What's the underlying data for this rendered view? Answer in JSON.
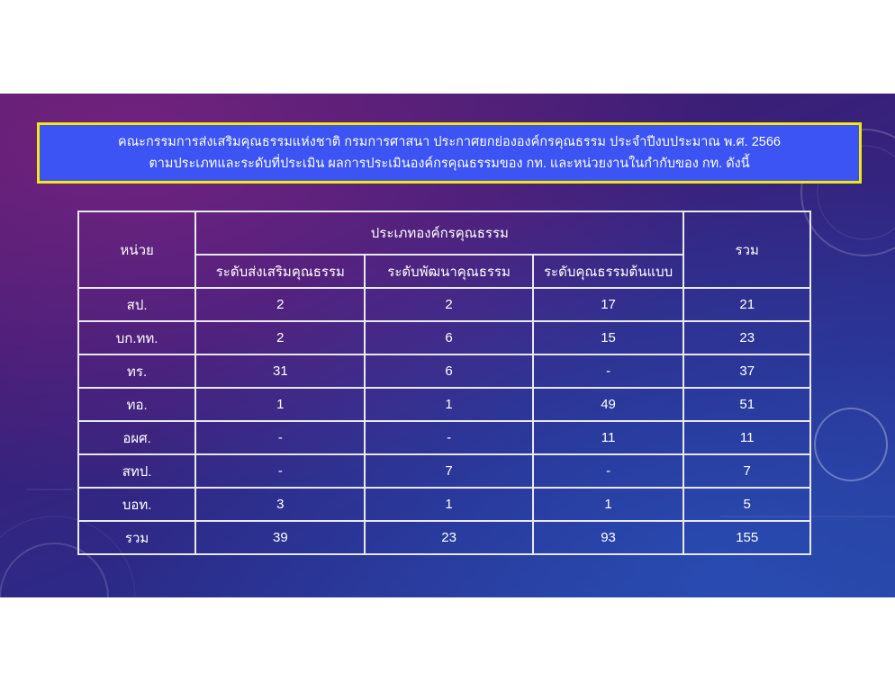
{
  "title": {
    "line1": "คณะกรรมการส่งเสริมคุณธรรมแห่งชาติ กรมการศาสนา ประกาศยกย่ององค์กรคุณธรรม ประจำปีงบประมาณ พ.ศ. 2566",
    "line2": "ตามประเภทและระดับที่ประเมิน ผลการประเมินองค์กรคุณธรรมของ กท. และหน่วยงานในกำกับของ กท. ดังนี้"
  },
  "table": {
    "header_unit": "หน่วย",
    "header_group": "ประเภทองค์กรคุณธรรม",
    "header_total": "รวม",
    "subheaders": [
      "ระดับส่งเสริมคุณธรรม",
      "ระดับพัฒนาคุณธรรม",
      "ระดับคุณธรรมต้นแบบ"
    ],
    "rows": [
      {
        "unit": "สป.",
        "a": "2",
        "b": "2",
        "c": "17",
        "total": "21"
      },
      {
        "unit": "บก.ทท.",
        "a": "2",
        "b": "6",
        "c": "15",
        "total": "23"
      },
      {
        "unit": "ทร.",
        "a": "31",
        "b": "6",
        "c": "-",
        "total": "37"
      },
      {
        "unit": "ทอ.",
        "a": "1",
        "b": "1",
        "c": "49",
        "total": "51"
      },
      {
        "unit": "อผศ.",
        "a": "-",
        "b": "-",
        "c": "11",
        "total": "11"
      },
      {
        "unit": "สทป.",
        "a": "-",
        "b": "7",
        "c": "-",
        "total": "7"
      },
      {
        "unit": "บอท.",
        "a": "3",
        "b": "1",
        "c": "1",
        "total": "5"
      },
      {
        "unit": "รวม",
        "a": "39",
        "b": "23",
        "c": "93",
        "total": "155"
      }
    ]
  },
  "colors": {
    "title_bg": "#3b54f3",
    "title_border": "#f4e80c",
    "text": "#ffffff"
  }
}
